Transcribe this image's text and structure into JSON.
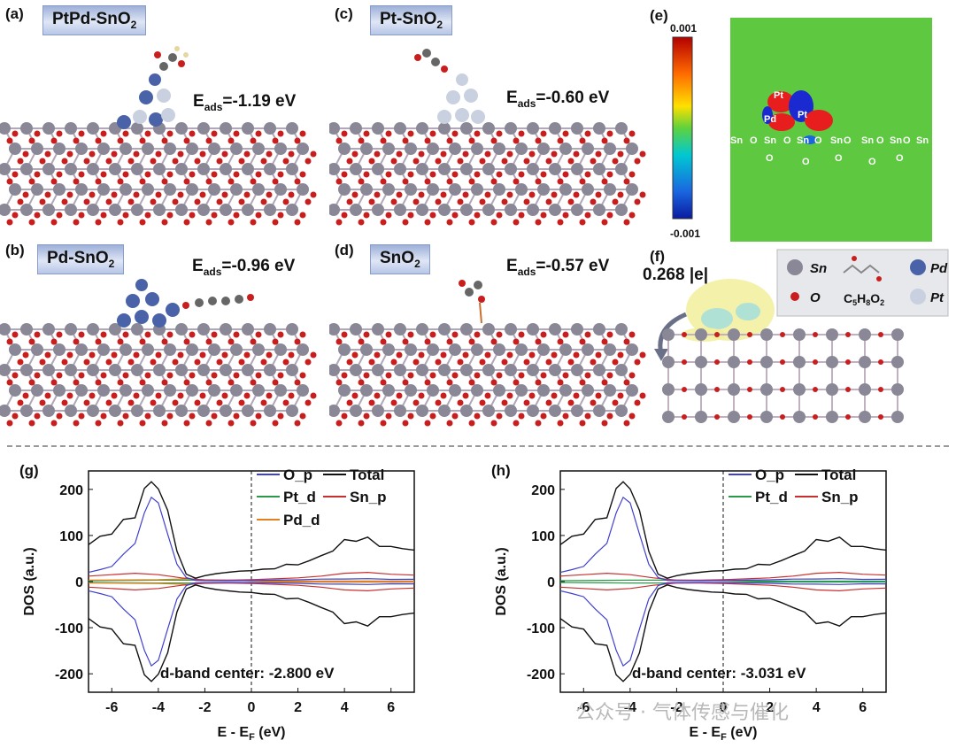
{
  "panels": {
    "a": {
      "letter": "(a)",
      "title_base": "PtPd-SnO",
      "title_sub": "2",
      "eads_label": "E",
      "eads_sub": "ads",
      "eads_value": "=-1.19 eV"
    },
    "b": {
      "letter": "(b)",
      "title_base": "Pd-SnO",
      "title_sub": "2",
      "eads_label": "E",
      "eads_sub": "ads",
      "eads_value": "=-0.96 eV"
    },
    "c": {
      "letter": "(c)",
      "title_base": "Pt-SnO",
      "title_sub": "2",
      "eads_label": "E",
      "eads_sub": "ads",
      "eads_value": "=-0.60 eV"
    },
    "d": {
      "letter": "(d)",
      "title_base": "SnO",
      "title_sub": "2",
      "eads_label": "E",
      "eads_sub": "ads",
      "eads_value": "=-0.57 eV"
    },
    "e": {
      "letter": "(e)",
      "scale_max": "0.001",
      "scale_min": "-0.001",
      "map_labels": {
        "pt1": "Pt",
        "pt2": "Pt",
        "pd": "Pd",
        "row": [
          "Sn",
          "O",
          "Sn",
          "O",
          "Sn",
          "O",
          "Sn",
          "O",
          "Sn",
          "O",
          "Sn",
          "O",
          "Sn"
        ],
        "o_mark": "O"
      }
    },
    "f": {
      "letter": "(f)",
      "charge": "0.268 |e|",
      "legend": {
        "sn": "Sn",
        "o": "O",
        "mol_base": "C",
        "mol_s1": "5",
        "mol_h": "H",
        "mol_s2": "8",
        "mol_o": "O",
        "mol_s3": "2",
        "pd": "Pd",
        "pt": "Pt"
      }
    }
  },
  "colors": {
    "sn": "#8a8796",
    "o": "#c81e1e",
    "pd": "#4a62a8",
    "pt": "#c9d1e0",
    "total": "#111111",
    "o_p": "#4040d0",
    "pt_d": "#2a9a4a",
    "sn_p": "#c83030",
    "pd_d": "#e08020"
  },
  "watermark": "公众号 · 气体传感与催化",
  "chart_data": [
    {
      "type": "line",
      "panel": "(g)",
      "xlabel": "E - E",
      "xlabel_sub": "F",
      "xlabel_unit": " (eV)",
      "ylabel": "DOS (a.u.)",
      "xlim": [
        -7,
        7
      ],
      "ylim": [
        -240,
        240
      ],
      "xticks": [
        -6,
        -4,
        -2,
        0,
        2,
        4,
        6
      ],
      "yticks": [
        200,
        100,
        0,
        -100,
        -200
      ],
      "legend": [
        "O_p",
        "Total",
        "Pt_d",
        "Sn_p",
        "Pd_d"
      ],
      "annotation": "d-band center: -2.800 eV",
      "fermi_level": 0,
      "series": [
        {
          "name": "Total",
          "x": [
            -7,
            -6.5,
            -6,
            -5.5,
            -5,
            -4.6,
            -4.3,
            -4,
            -3.6,
            -3.2,
            -2.8,
            -2.4,
            -2,
            -1.5,
            -1,
            -0.5,
            0,
            0.5,
            1,
            1.5,
            2,
            2.5,
            3,
            3.5,
            4,
            4.5,
            5,
            5.5,
            6,
            6.5,
            7
          ],
          "values": [
            80,
            95,
            110,
            125,
            150,
            190,
            225,
            200,
            150,
            70,
            15,
            8,
            12,
            18,
            20,
            22,
            25,
            25,
            30,
            35,
            38,
            45,
            55,
            70,
            85,
            95,
            90,
            80,
            75,
            70,
            72
          ]
        },
        {
          "name": "O_p",
          "x": [
            -7,
            -6.5,
            -6,
            -5.5,
            -5,
            -4.6,
            -4.3,
            -4,
            -3.6,
            -3.2,
            -2.8,
            -2.4,
            -2,
            -1,
            0,
            1,
            2,
            3,
            4,
            5,
            6,
            7
          ],
          "values": [
            20,
            25,
            35,
            55,
            90,
            140,
            190,
            170,
            100,
            40,
            8,
            3,
            2,
            2,
            2,
            3,
            4,
            5,
            6,
            6,
            5,
            5
          ]
        },
        {
          "name": "Sn_p",
          "x": [
            -7,
            -6,
            -5,
            -4,
            -3,
            -2,
            -1,
            0,
            1,
            2,
            3,
            4,
            5,
            6,
            7
          ],
          "values": [
            12,
            15,
            18,
            15,
            8,
            3,
            3,
            4,
            6,
            8,
            12,
            18,
            20,
            16,
            14
          ]
        },
        {
          "name": "Pt_d",
          "x": [
            -7,
            -4,
            -2,
            0,
            2,
            4,
            7
          ],
          "values": [
            2,
            3,
            3,
            2,
            1,
            1,
            1
          ]
        },
        {
          "name": "Pd_d",
          "x": [
            -7,
            -4,
            -2.8,
            -2,
            0,
            2,
            4,
            7
          ],
          "values": [
            3,
            4,
            6,
            4,
            2,
            1,
            1,
            1
          ]
        }
      ]
    },
    {
      "type": "line",
      "panel": "(h)",
      "xlabel": "E - E",
      "xlabel_sub": "F",
      "xlabel_unit": " (eV)",
      "ylabel": "DOS (a.u.)",
      "xlim": [
        -7,
        7
      ],
      "ylim": [
        -240,
        240
      ],
      "xticks": [
        -6,
        -4,
        -2,
        0,
        2,
        4,
        6
      ],
      "yticks": [
        200,
        100,
        0,
        -100,
        -200
      ],
      "legend": [
        "O_p",
        "Total",
        "Pt_d",
        "Sn_p"
      ],
      "annotation": "d-band center: -3.031 eV",
      "fermi_level": 0,
      "series": [
        {
          "name": "Total",
          "x": [
            -7,
            -6.5,
            -6,
            -5.5,
            -5,
            -4.6,
            -4.3,
            -4,
            -3.6,
            -3.2,
            -2.8,
            -2.4,
            -2,
            -1.5,
            -1,
            -0.5,
            0,
            0.5,
            1,
            1.5,
            2,
            2.5,
            3,
            3.5,
            4,
            4.5,
            5,
            5.5,
            6,
            6.5,
            7
          ],
          "values": [
            80,
            95,
            110,
            125,
            150,
            190,
            225,
            200,
            150,
            70,
            15,
            8,
            12,
            18,
            20,
            22,
            25,
            25,
            30,
            35,
            38,
            45,
            55,
            70,
            85,
            95,
            90,
            80,
            75,
            70,
            72
          ]
        },
        {
          "name": "O_p",
          "x": [
            -7,
            -6.5,
            -6,
            -5.5,
            -5,
            -4.6,
            -4.3,
            -4,
            -3.6,
            -3.2,
            -2.8,
            -2.4,
            -2,
            -1,
            0,
            1,
            2,
            3,
            4,
            5,
            6,
            7
          ],
          "values": [
            20,
            25,
            35,
            55,
            90,
            140,
            190,
            170,
            100,
            40,
            8,
            3,
            2,
            2,
            2,
            3,
            4,
            5,
            6,
            6,
            5,
            5
          ]
        },
        {
          "name": "Sn_p",
          "x": [
            -7,
            -6,
            -5,
            -4,
            -3,
            -2,
            -1,
            0,
            1,
            2,
            3,
            4,
            5,
            6,
            7
          ],
          "values": [
            12,
            15,
            18,
            15,
            8,
            3,
            3,
            4,
            6,
            8,
            12,
            18,
            20,
            16,
            14
          ]
        },
        {
          "name": "Pt_d",
          "x": [
            -7,
            -4,
            -2,
            0,
            2,
            4,
            7
          ],
          "values": [
            2,
            3,
            3,
            2,
            1,
            1,
            1
          ]
        }
      ]
    }
  ]
}
